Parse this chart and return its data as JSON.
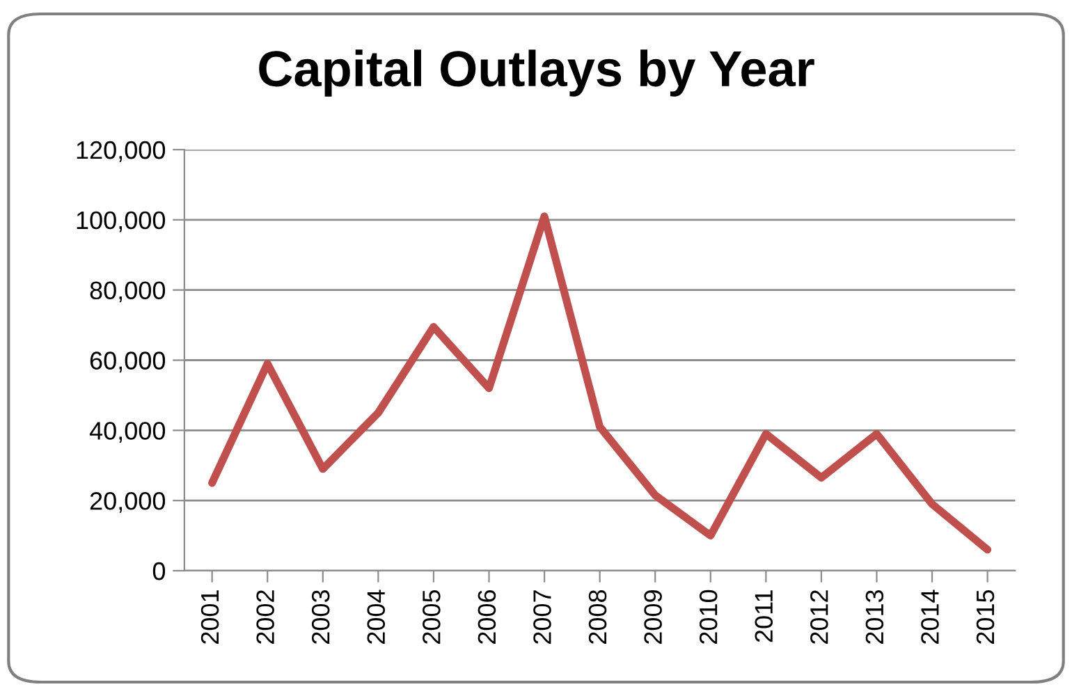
{
  "chart_data": {
    "type": "line",
    "title": "Capital Outlays by Year",
    "categories": [
      "2001",
      "2002",
      "2003",
      "2004",
      "2005",
      "2006",
      "2007",
      "2008",
      "2009",
      "2010",
      "2011",
      "2012",
      "2013",
      "2014",
      "2015"
    ],
    "series": [
      {
        "color": "#c0504d",
        "values": [
          25000,
          59000,
          29000,
          45000,
          69500,
          52000,
          101000,
          41000,
          21500,
          10000,
          39000,
          26500,
          39000,
          19000,
          6000
        ]
      }
    ],
    "ylim": [
      0,
      120000
    ],
    "yticks": [
      {
        "value": 0,
        "label": "0"
      },
      {
        "value": 20000,
        "label": "20,000"
      },
      {
        "value": 40000,
        "label": "40,000"
      },
      {
        "value": 60000,
        "label": "60,000"
      },
      {
        "value": 80000,
        "label": "80,000"
      },
      {
        "value": 100000,
        "label": "100,000"
      },
      {
        "value": 120000,
        "label": "120,000"
      }
    ],
    "grid": "y",
    "marker": "none",
    "line_style": "solid"
  }
}
